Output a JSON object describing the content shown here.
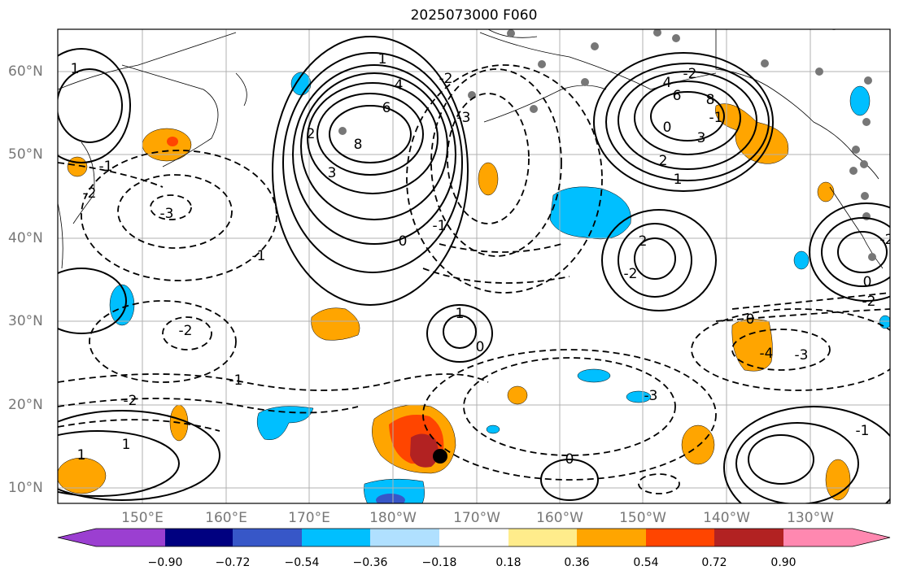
{
  "title": "2025073000 F060",
  "lat_labels": [
    "60°N",
    "50°N",
    "40°N",
    "30°N",
    "20°N",
    "10°N"
  ],
  "lon_labels": [
    "150°E",
    "160°E",
    "170°E",
    "180°W",
    "170°W",
    "160°W",
    "150°W",
    "140°W",
    "130°W"
  ],
  "colorbar": {
    "ticks": [
      "−0.90",
      "−0.72",
      "−0.54",
      "−0.36",
      "−0.18",
      "0.18",
      "0.36",
      "0.54",
      "0.72",
      "0.90"
    ],
    "colors": [
      "#9b3fd1",
      "#000080",
      "#3757c8",
      "#00bfff",
      "#b0e0ff",
      "#ffffff",
      "#ffec8b",
      "#ffa500",
      "#ff4500",
      "#b22222",
      "#ff88b0"
    ]
  },
  "contour_labels": [
    "8",
    "6",
    "4",
    "3",
    "2",
    "1",
    "0",
    "-1",
    "-2",
    "-3",
    "8",
    "6",
    "4",
    "3",
    "2",
    "1",
    "0",
    "-1",
    "-2",
    "1",
    "-1",
    "-2",
    "-3",
    "-1",
    "1",
    "-2",
    "0",
    "1",
    "2",
    "-2",
    "-3",
    "-1",
    "-2",
    "0",
    "1",
    "0",
    "-2",
    "-2",
    "-1",
    "0",
    "-3",
    "-4"
  ]
}
